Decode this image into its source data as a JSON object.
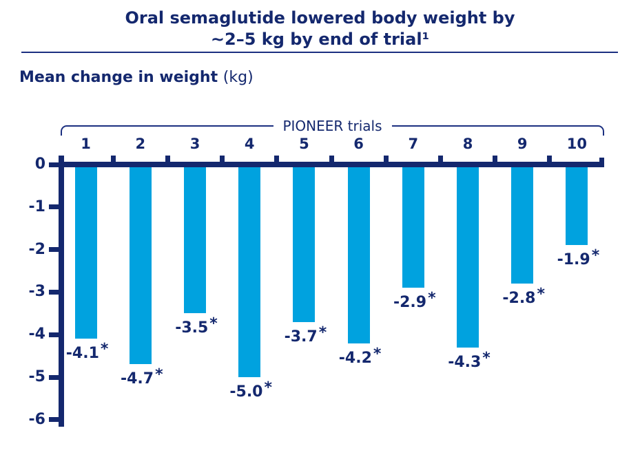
{
  "header": {
    "title_line1": "Oral semaglutide lowered body weight by",
    "title_line2": "~2–5 kg by end of trial¹",
    "subtitle_bold": "Mean change in weight",
    "subtitle_unit": "(kg)"
  },
  "chart_data": {
    "type": "bar",
    "title": "Oral semaglutide lowered body weight by ~2–5 kg by end of trial¹",
    "ylabel": "Mean change in weight (kg)",
    "group_label": "PIONEER trials",
    "categories": [
      "1",
      "2",
      "3",
      "4",
      "5",
      "6",
      "7",
      "8",
      "9",
      "10"
    ],
    "values": [
      -4.1,
      -4.7,
      -3.5,
      -5.0,
      -3.7,
      -4.2,
      -2.9,
      -4.3,
      -2.8,
      -1.9
    ],
    "data_labels": [
      "-4.1",
      "-4.7",
      "-3.5",
      "-5.0",
      "-3.7",
      "-4.2",
      "-2.9",
      "-4.3",
      "-2.8",
      "-1.9"
    ],
    "significance_marker": "*",
    "yticks": [
      0,
      -1,
      -2,
      -3,
      -4,
      -5,
      -6
    ],
    "ylim": [
      0,
      -6
    ],
    "grid": false,
    "legend": "none",
    "colors": {
      "bar": "#00a2df",
      "axis": "#14286e",
      "text": "#14286e"
    }
  }
}
